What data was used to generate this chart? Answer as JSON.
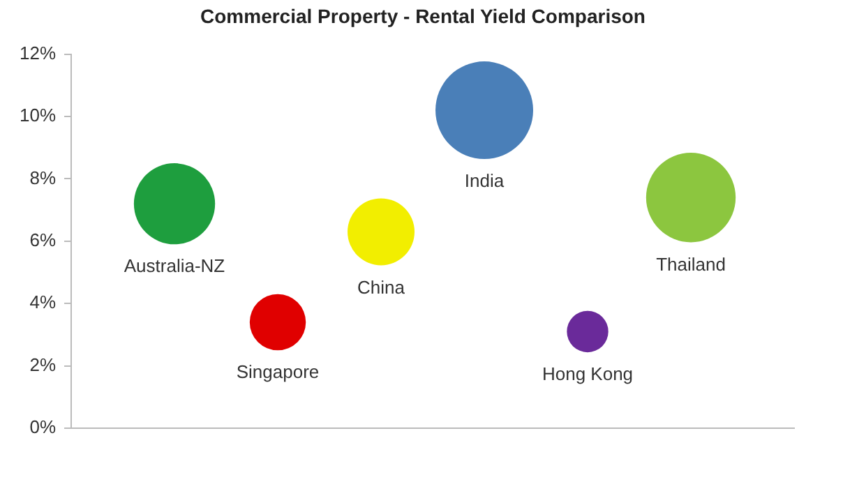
{
  "chart_data": {
    "type": "bubble",
    "title": "Commercial Property - Rental Yield Comparison",
    "categories": [
      null,
      null,
      null,
      null,
      null,
      null
    ],
    "series": [
      {
        "name": "Australia-NZ",
        "color": "#1e9e3e",
        "values": [
          7.2,
          null,
          null,
          null,
          null,
          null
        ],
        "sizes": [
          0.69,
          null,
          null,
          null,
          null,
          null
        ]
      },
      {
        "name": "Singapore",
        "color": "#e00000",
        "values": [
          null,
          3.4,
          null,
          null,
          null,
          null
        ],
        "sizes": [
          null,
          0.33,
          null,
          null,
          null,
          null
        ]
      },
      {
        "name": "China",
        "color": "#f2ee00",
        "values": [
          null,
          null,
          6.3,
          null,
          null,
          null
        ],
        "sizes": [
          null,
          null,
          0.47,
          null,
          null,
          null
        ]
      },
      {
        "name": "India",
        "color": "#4a7fb8",
        "values": [
          null,
          null,
          null,
          10.2,
          null,
          null
        ],
        "sizes": [
          null,
          null,
          null,
          1,
          null,
          null
        ]
      },
      {
        "name": "Hong Kong",
        "color": "#6a2a9a",
        "values": [
          null,
          null,
          null,
          null,
          3.1,
          null
        ],
        "sizes": [
          null,
          null,
          null,
          null,
          0.18,
          null
        ]
      },
      {
        "name": "Thailand",
        "color": "#8cc63f",
        "values": [
          null,
          null,
          null,
          null,
          null,
          7.4
        ],
        "sizes": [
          null,
          null,
          null,
          null,
          null,
          0.84
        ]
      }
    ],
    "ylim": [
      0,
      12
    ],
    "yticks": [
      {
        "value": 0,
        "label": "0%"
      },
      {
        "value": 2,
        "label": "2%"
      },
      {
        "value": 4,
        "label": "4%"
      },
      {
        "value": 6,
        "label": "6%"
      },
      {
        "value": 8,
        "label": "8%"
      },
      {
        "value": 10,
        "label": "10%"
      },
      {
        "value": 12,
        "label": "12%"
      }
    ],
    "grid": false,
    "legend": false
  }
}
